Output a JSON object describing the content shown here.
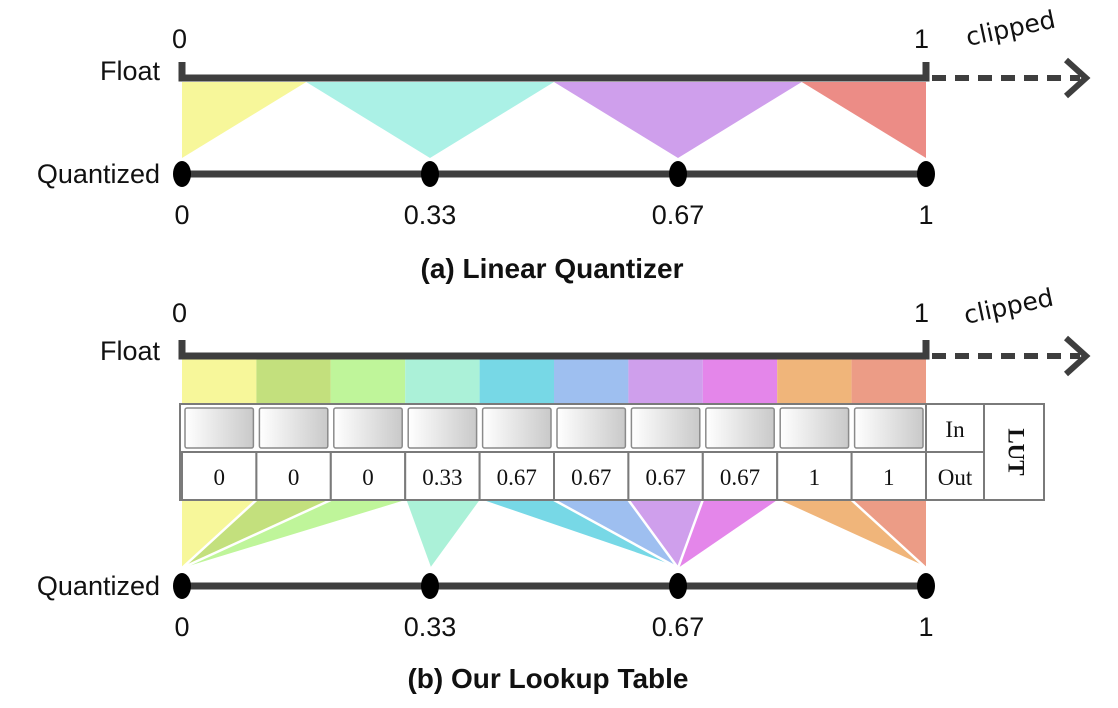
{
  "panel_a": {
    "caption": "(a) Linear Quantizer",
    "float_label": "Float",
    "quantized_label": "Quantized",
    "float_start": "0",
    "float_end": "1",
    "clipped_label": "clipped",
    "quantized_ticks": [
      "0",
      "0.33",
      "0.67",
      "1"
    ],
    "float_bins": [
      {
        "from": 0.0,
        "to": 0.167,
        "target": 0,
        "color": "#f7f79a"
      },
      {
        "from": 0.167,
        "to": 0.5,
        "target": 1,
        "color": "#abf1e6"
      },
      {
        "from": 0.5,
        "to": 0.833,
        "target": 2,
        "color": "#cf9fec"
      },
      {
        "from": 0.833,
        "to": 1.0,
        "target": 3,
        "color": "#ec8c86"
      }
    ]
  },
  "panel_b": {
    "caption": "(b) Our Lookup Table",
    "float_label": "Float",
    "quantized_label": "Quantized",
    "float_start": "0",
    "float_end": "1",
    "clipped_label": "clipped",
    "quantized_ticks": [
      "0",
      "0.33",
      "0.67",
      "1"
    ],
    "lut": {
      "title": "LUT",
      "in_label": "In",
      "out_label": "Out",
      "cells": [
        {
          "out": "0",
          "target": 0,
          "color": "#f7f79a"
        },
        {
          "out": "0",
          "target": 0,
          "color": "#c3e07d"
        },
        {
          "out": "0",
          "target": 0,
          "color": "#bff59a"
        },
        {
          "out": "0.33",
          "target": 1,
          "color": "#abf1d8"
        },
        {
          "out": "0.67",
          "target": 2,
          "color": "#77d8e6"
        },
        {
          "out": "0.67",
          "target": 2,
          "color": "#9ebff0"
        },
        {
          "out": "0.67",
          "target": 2,
          "color": "#cf9fec"
        },
        {
          "out": "0.67",
          "target": 2,
          "color": "#e486ea"
        },
        {
          "out": "1",
          "target": 3,
          "color": "#f0b57a"
        },
        {
          "out": "1",
          "target": 3,
          "color": "#ec9c86"
        }
      ]
    }
  }
}
